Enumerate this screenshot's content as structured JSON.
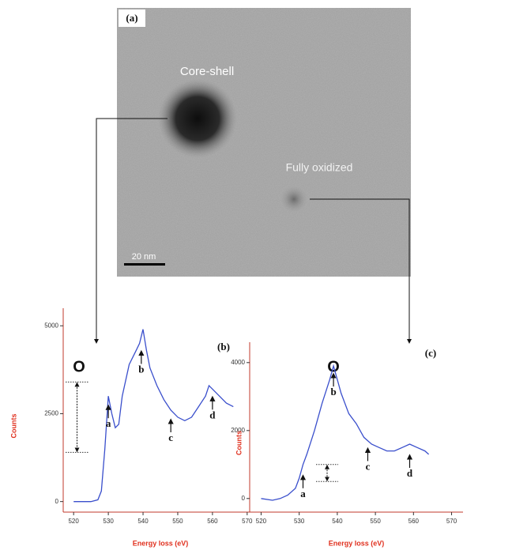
{
  "image": {
    "panel_label": "(a)",
    "labels": [
      "Core-shell",
      "Fully oxidized"
    ],
    "scale_bar": "20 nm"
  },
  "chart_data": [
    {
      "type": "line",
      "panel_label": "(b)",
      "element": "O",
      "x_label": "Energy loss (eV)",
      "y_label": "Counts",
      "xlim": [
        517,
        573
      ],
      "xticks": [
        520,
        530,
        540,
        550,
        560,
        570
      ],
      "ylim": [
        -300,
        5500
      ],
      "yticks": [
        0,
        2500,
        5000
      ],
      "annotations": [
        "a",
        "b",
        "c",
        "d"
      ],
      "reference_levels": [
        3400,
        1400
      ],
      "series": [
        {
          "color": "#3a4fcc",
          "x": [
            520,
            525,
            527,
            528,
            529,
            530,
            531,
            532,
            533,
            534,
            536,
            538,
            539,
            540,
            541,
            542,
            544,
            546,
            548,
            550,
            552,
            554,
            556,
            558,
            559,
            560,
            562,
            564,
            566
          ],
          "values": [
            0,
            0,
            50,
            300,
            1500,
            3000,
            2500,
            2100,
            2200,
            3000,
            3900,
            4300,
            4500,
            4900,
            4300,
            3800,
            3300,
            2900,
            2600,
            2400,
            2300,
            2400,
            2700,
            3000,
            3300,
            3200,
            3000,
            2800,
            2700
          ]
        }
      ]
    },
    {
      "type": "line",
      "panel_label": "(c)",
      "element": "O",
      "x_label": "Energy loss (eV)",
      "y_label": "Counts",
      "xlim": [
        517,
        573
      ],
      "xticks": [
        520,
        530,
        540,
        550,
        560,
        570
      ],
      "ylim": [
        -400,
        4600
      ],
      "yticks": [
        0,
        2000,
        4000
      ],
      "annotations": [
        "a",
        "b",
        "c",
        "d"
      ],
      "reference_levels": [
        1000,
        500
      ],
      "series": [
        {
          "color": "#3a4fcc",
          "x": [
            520,
            523,
            525,
            527,
            529,
            530,
            531,
            532,
            534,
            536,
            538,
            539,
            540,
            541,
            543,
            545,
            547,
            549,
            551,
            553,
            555,
            557,
            559,
            561,
            563,
            564
          ],
          "values": [
            0,
            -50,
            0,
            100,
            300,
            600,
            1000,
            1300,
            2000,
            2800,
            3500,
            3900,
            3500,
            3100,
            2500,
            2200,
            1800,
            1600,
            1500,
            1400,
            1400,
            1500,
            1600,
            1500,
            1400,
            1300
          ]
        }
      ]
    }
  ]
}
